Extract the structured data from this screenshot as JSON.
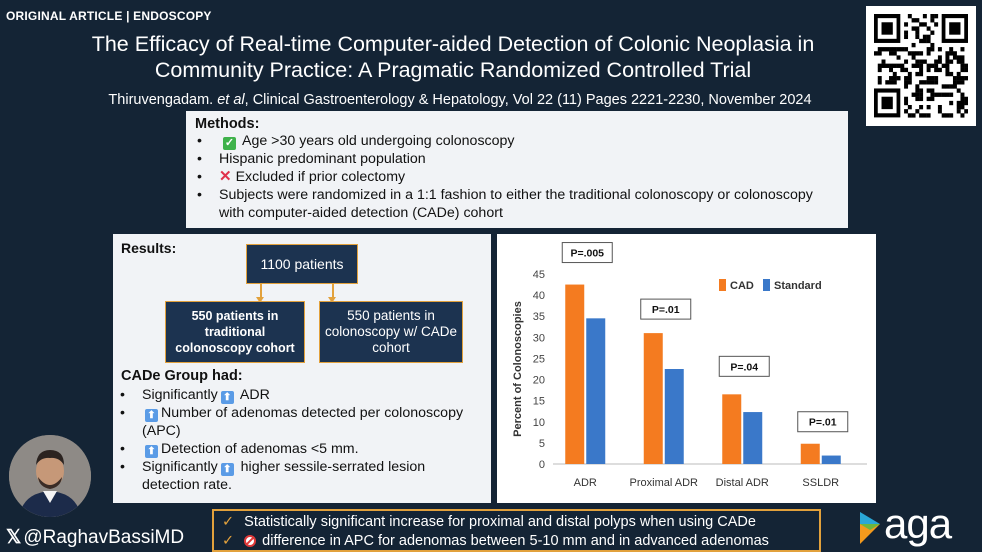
{
  "tag": "ORIGINAL ARTICLE | ENDOSCOPY",
  "title": "The Efficacy of Real-time Computer-aided Detection of Colonic Neoplasia in Community Practice: A Pragmatic Randomized Controlled Trial",
  "citation": {
    "author": "Thiruvengadam.",
    "etal": "et al",
    "rest": ", Clinical Gastroenterology & Hepatology, Vol 22 (11) Pages 2221-2230, November 2024"
  },
  "methods": {
    "header": "Methods:",
    "items": [
      "Age >30 years old undergoing colonoscopy",
      "Hispanic predominant population",
      "Excluded if prior colectomy",
      "Subjects were randomized in a 1:1 fashion to either the traditional colonoscopy or colonoscopy with computer-aided detection (CADe) cohort"
    ]
  },
  "results": {
    "header": "Results:",
    "total": "1100 patients",
    "arm_traditional": "550 patients in traditional colonoscopy cohort",
    "arm_cade": "550 patients in colonoscopy w/ CADe cohort",
    "cade_header": "CADe Group had:",
    "items": [
      {
        "pre": "Significantly",
        "post": "ADR"
      },
      {
        "pre": "",
        "post": "Number of adenomas detected per colonoscopy (APC)"
      },
      {
        "pre": "",
        "post": "Detection of adenomas <5 mm."
      },
      {
        "pre": "Significantly",
        "post": "higher sessile-serrated lesion detection rate."
      }
    ]
  },
  "chart_data": {
    "type": "bar",
    "categories": [
      "ADR",
      "Proximal ADR",
      "Distal ADR",
      "SSLDR"
    ],
    "series": [
      {
        "name": "CAD",
        "values": [
          42.5,
          31,
          16.5,
          4.8
        ]
      },
      {
        "name": "Standard",
        "values": [
          34.5,
          22.5,
          12.3,
          2
        ]
      }
    ],
    "pvalues": [
      "P=.005",
      "P=.01",
      "P=.04",
      "P=.01"
    ],
    "ylabel": "Percent of Colonoscopies",
    "ylim": [
      0,
      45
    ],
    "yticks": [
      "0",
      "5",
      "10",
      "15",
      "20",
      "25",
      "30",
      "35",
      "40",
      "45"
    ],
    "legend_position": "top-right",
    "grid": false,
    "colors": {
      "CAD": "#f47b20",
      "Standard": "#3a78c9"
    }
  },
  "author_handle": "@RaghavBassiMD",
  "summary": [
    "Statistically significant increase for proximal and distal polyps when using CADe",
    "difference in APC for adenomas between 5-10 mm and in advanced adenomas"
  ],
  "logo": "aga"
}
